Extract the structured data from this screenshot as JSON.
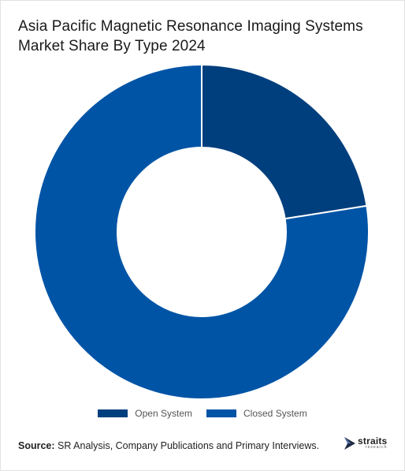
{
  "header": {
    "title": "Asia Pacific Magnetic Resonance Imaging Systems Market Share By Type 2024"
  },
  "chart_data": {
    "type": "pie",
    "subtype": "donut",
    "categories": [
      "Open System",
      "Closed System"
    ],
    "values": [
      22.5,
      77.5
    ],
    "colors": [
      "#003f7d",
      "#0054a6"
    ],
    "legend_position": "bottom"
  },
  "legend": {
    "items": [
      {
        "label": "Open System",
        "color": "#003f7d"
      },
      {
        "label": "Closed System",
        "color": "#0054a6"
      }
    ]
  },
  "footer": {
    "source_label": "Source:",
    "source_text": " SR Analysis, Company Publications and Primary Interviews."
  },
  "logo": {
    "main": "straits",
    "sub": "research"
  }
}
